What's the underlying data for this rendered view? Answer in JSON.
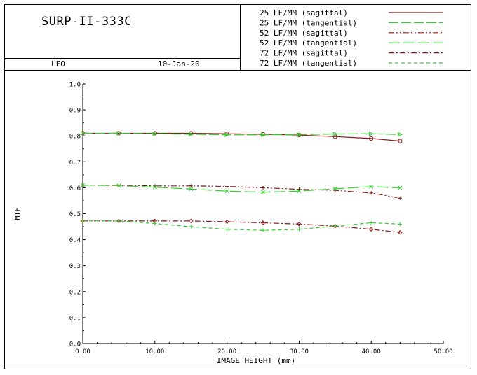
{
  "header": {
    "title": "SURP-II-333C",
    "footer_left": "LFO",
    "footer_date": "10-Jan-20"
  },
  "chart_data": {
    "type": "line",
    "title": "",
    "xlabel": "IMAGE HEIGHT (mm)",
    "ylabel": "MTF",
    "xlim": [
      0,
      50
    ],
    "ylim": [
      0,
      1
    ],
    "x_ticks": [
      "0.00",
      "10.00",
      "20.00",
      "30.00",
      "40.00",
      "50.00"
    ],
    "y_ticks": [
      "0.0",
      "0.1",
      "0.2",
      "0.3",
      "0.4",
      "0.5",
      "0.6",
      "0.7",
      "0.8",
      "0.9",
      "1.0"
    ],
    "grid": false,
    "legend_position": "top-right",
    "series": [
      {
        "name": "25 LF/MM (sagittal)",
        "color": "#8b1a1a",
        "dash": "solid",
        "marker": "circle",
        "x": [
          0,
          5,
          10,
          15,
          20,
          25,
          30,
          35,
          40,
          44
        ],
        "y": [
          0.81,
          0.81,
          0.81,
          0.81,
          0.808,
          0.806,
          0.803,
          0.797,
          0.79,
          0.78
        ]
      },
      {
        "name": "25 LF/MM (tangential)",
        "color": "#33cc33",
        "dash": "long",
        "marker": "triangle",
        "x": [
          0,
          5,
          10,
          15,
          20,
          25,
          30,
          35,
          40,
          44
        ],
        "y": [
          0.81,
          0.81,
          0.808,
          0.806,
          0.804,
          0.804,
          0.805,
          0.807,
          0.808,
          0.805
        ]
      },
      {
        "name": "52 LF/MM (sagittal)",
        "color": "#8b1a1a",
        "dash": "dashdotdot",
        "marker": "plus",
        "x": [
          0,
          5,
          10,
          15,
          20,
          25,
          30,
          35,
          40,
          44
        ],
        "y": [
          0.61,
          0.61,
          0.607,
          0.607,
          0.605,
          0.6,
          0.594,
          0.59,
          0.58,
          0.56
        ]
      },
      {
        "name": "52 LF/MM (tangential)",
        "color": "#33cc33",
        "dash": "longdash",
        "marker": "x",
        "x": [
          0,
          5,
          10,
          15,
          20,
          25,
          30,
          35,
          40,
          44
        ],
        "y": [
          0.61,
          0.608,
          0.602,
          0.595,
          0.587,
          0.583,
          0.587,
          0.596,
          0.604,
          0.6
        ]
      },
      {
        "name": "72 LF/MM (sagittal)",
        "color": "#8b1a1a",
        "dash": "dashdot",
        "marker": "diamond",
        "x": [
          0,
          5,
          10,
          15,
          20,
          25,
          30,
          35,
          40,
          44
        ],
        "y": [
          0.472,
          0.472,
          0.472,
          0.472,
          0.469,
          0.465,
          0.46,
          0.452,
          0.44,
          0.428
        ]
      },
      {
        "name": "72 LF/MM (tangential)",
        "color": "#33cc33",
        "dash": "short",
        "marker": "plus",
        "x": [
          0,
          5,
          10,
          15,
          20,
          25,
          30,
          35,
          40,
          44
        ],
        "y": [
          0.472,
          0.472,
          0.462,
          0.45,
          0.44,
          0.436,
          0.44,
          0.452,
          0.465,
          0.46
        ]
      }
    ]
  }
}
